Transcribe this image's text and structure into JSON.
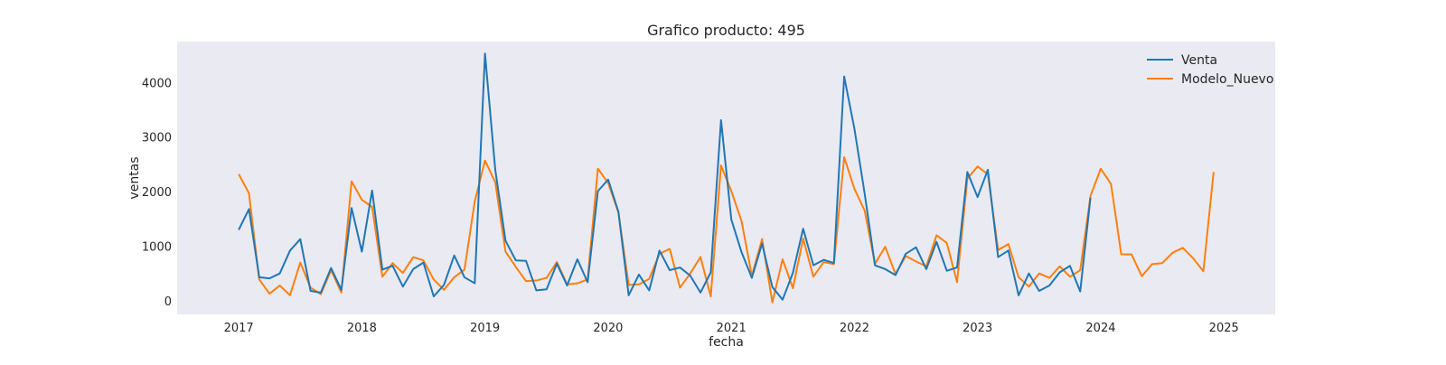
{
  "chart_data": {
    "type": "line",
    "title": "Grafico producto: 495",
    "xlabel": "fecha",
    "ylabel": "ventas",
    "xlim": [
      "2016-07",
      "2025-06"
    ],
    "ylim": [
      -250,
      4750
    ],
    "grid": false,
    "legend_position": "top-right",
    "x_ticks": [
      "2017",
      "2018",
      "2019",
      "2020",
      "2021",
      "2022",
      "2023",
      "2024",
      "2025"
    ],
    "y_ticks": [
      0,
      1000,
      2000,
      3000,
      4000
    ],
    "colors": {
      "plot_background": "#eaeaf2",
      "Venta": "#1f77b4",
      "Modelo_Nuevo": "#ff7f0e"
    },
    "series": [
      {
        "name": "Venta",
        "start": "2017-01",
        "values": [
          1300,
          1680,
          430,
          410,
          500,
          920,
          1130,
          180,
          150,
          600,
          200,
          1700,
          900,
          2020,
          570,
          640,
          260,
          580,
          700,
          80,
          290,
          830,
          430,
          320,
          4530,
          2400,
          1100,
          740,
          730,
          190,
          210,
          680,
          280,
          760,
          340,
          2010,
          2220,
          1630,
          100,
          480,
          190,
          920,
          560,
          610,
          460,
          150,
          520,
          3310,
          1490,
          890,
          420,
          1050,
          250,
          20,
          510,
          1320,
          650,
          750,
          690,
          4110,
          3150,
          1960,
          650,
          580,
          470,
          860,
          980,
          580,
          1080,
          550,
          610,
          2360,
          1900,
          2400,
          800,
          920,
          100,
          500,
          180,
          280,
          520,
          640,
          170,
          1890
        ]
      },
      {
        "name": "Modelo_Nuevo",
        "start": "2017-01",
        "values": [
          2320,
          1970,
          390,
          130,
          280,
          100,
          700,
          240,
          120,
          560,
          150,
          2190,
          1850,
          1720,
          440,
          690,
          510,
          800,
          740,
          390,
          200,
          430,
          570,
          1820,
          2570,
          2170,
          900,
          620,
          360,
          370,
          420,
          710,
          300,
          320,
          390,
          2420,
          2160,
          1620,
          290,
          300,
          400,
          860,
          950,
          240,
          500,
          800,
          80,
          2480,
          2010,
          1460,
          460,
          1130,
          -30,
          760,
          230,
          1140,
          440,
          710,
          670,
          2630,
          2050,
          1650,
          680,
          990,
          490,
          820,
          720,
          630,
          1200,
          1060,
          340,
          2240,
          2460,
          2320,
          930,
          1040,
          430,
          260,
          500,
          420,
          630,
          440,
          560,
          1920,
          2420,
          2140,
          850,
          850,
          450,
          670,
          690,
          880,
          970,
          780,
          540,
          2360
        ]
      }
    ]
  }
}
